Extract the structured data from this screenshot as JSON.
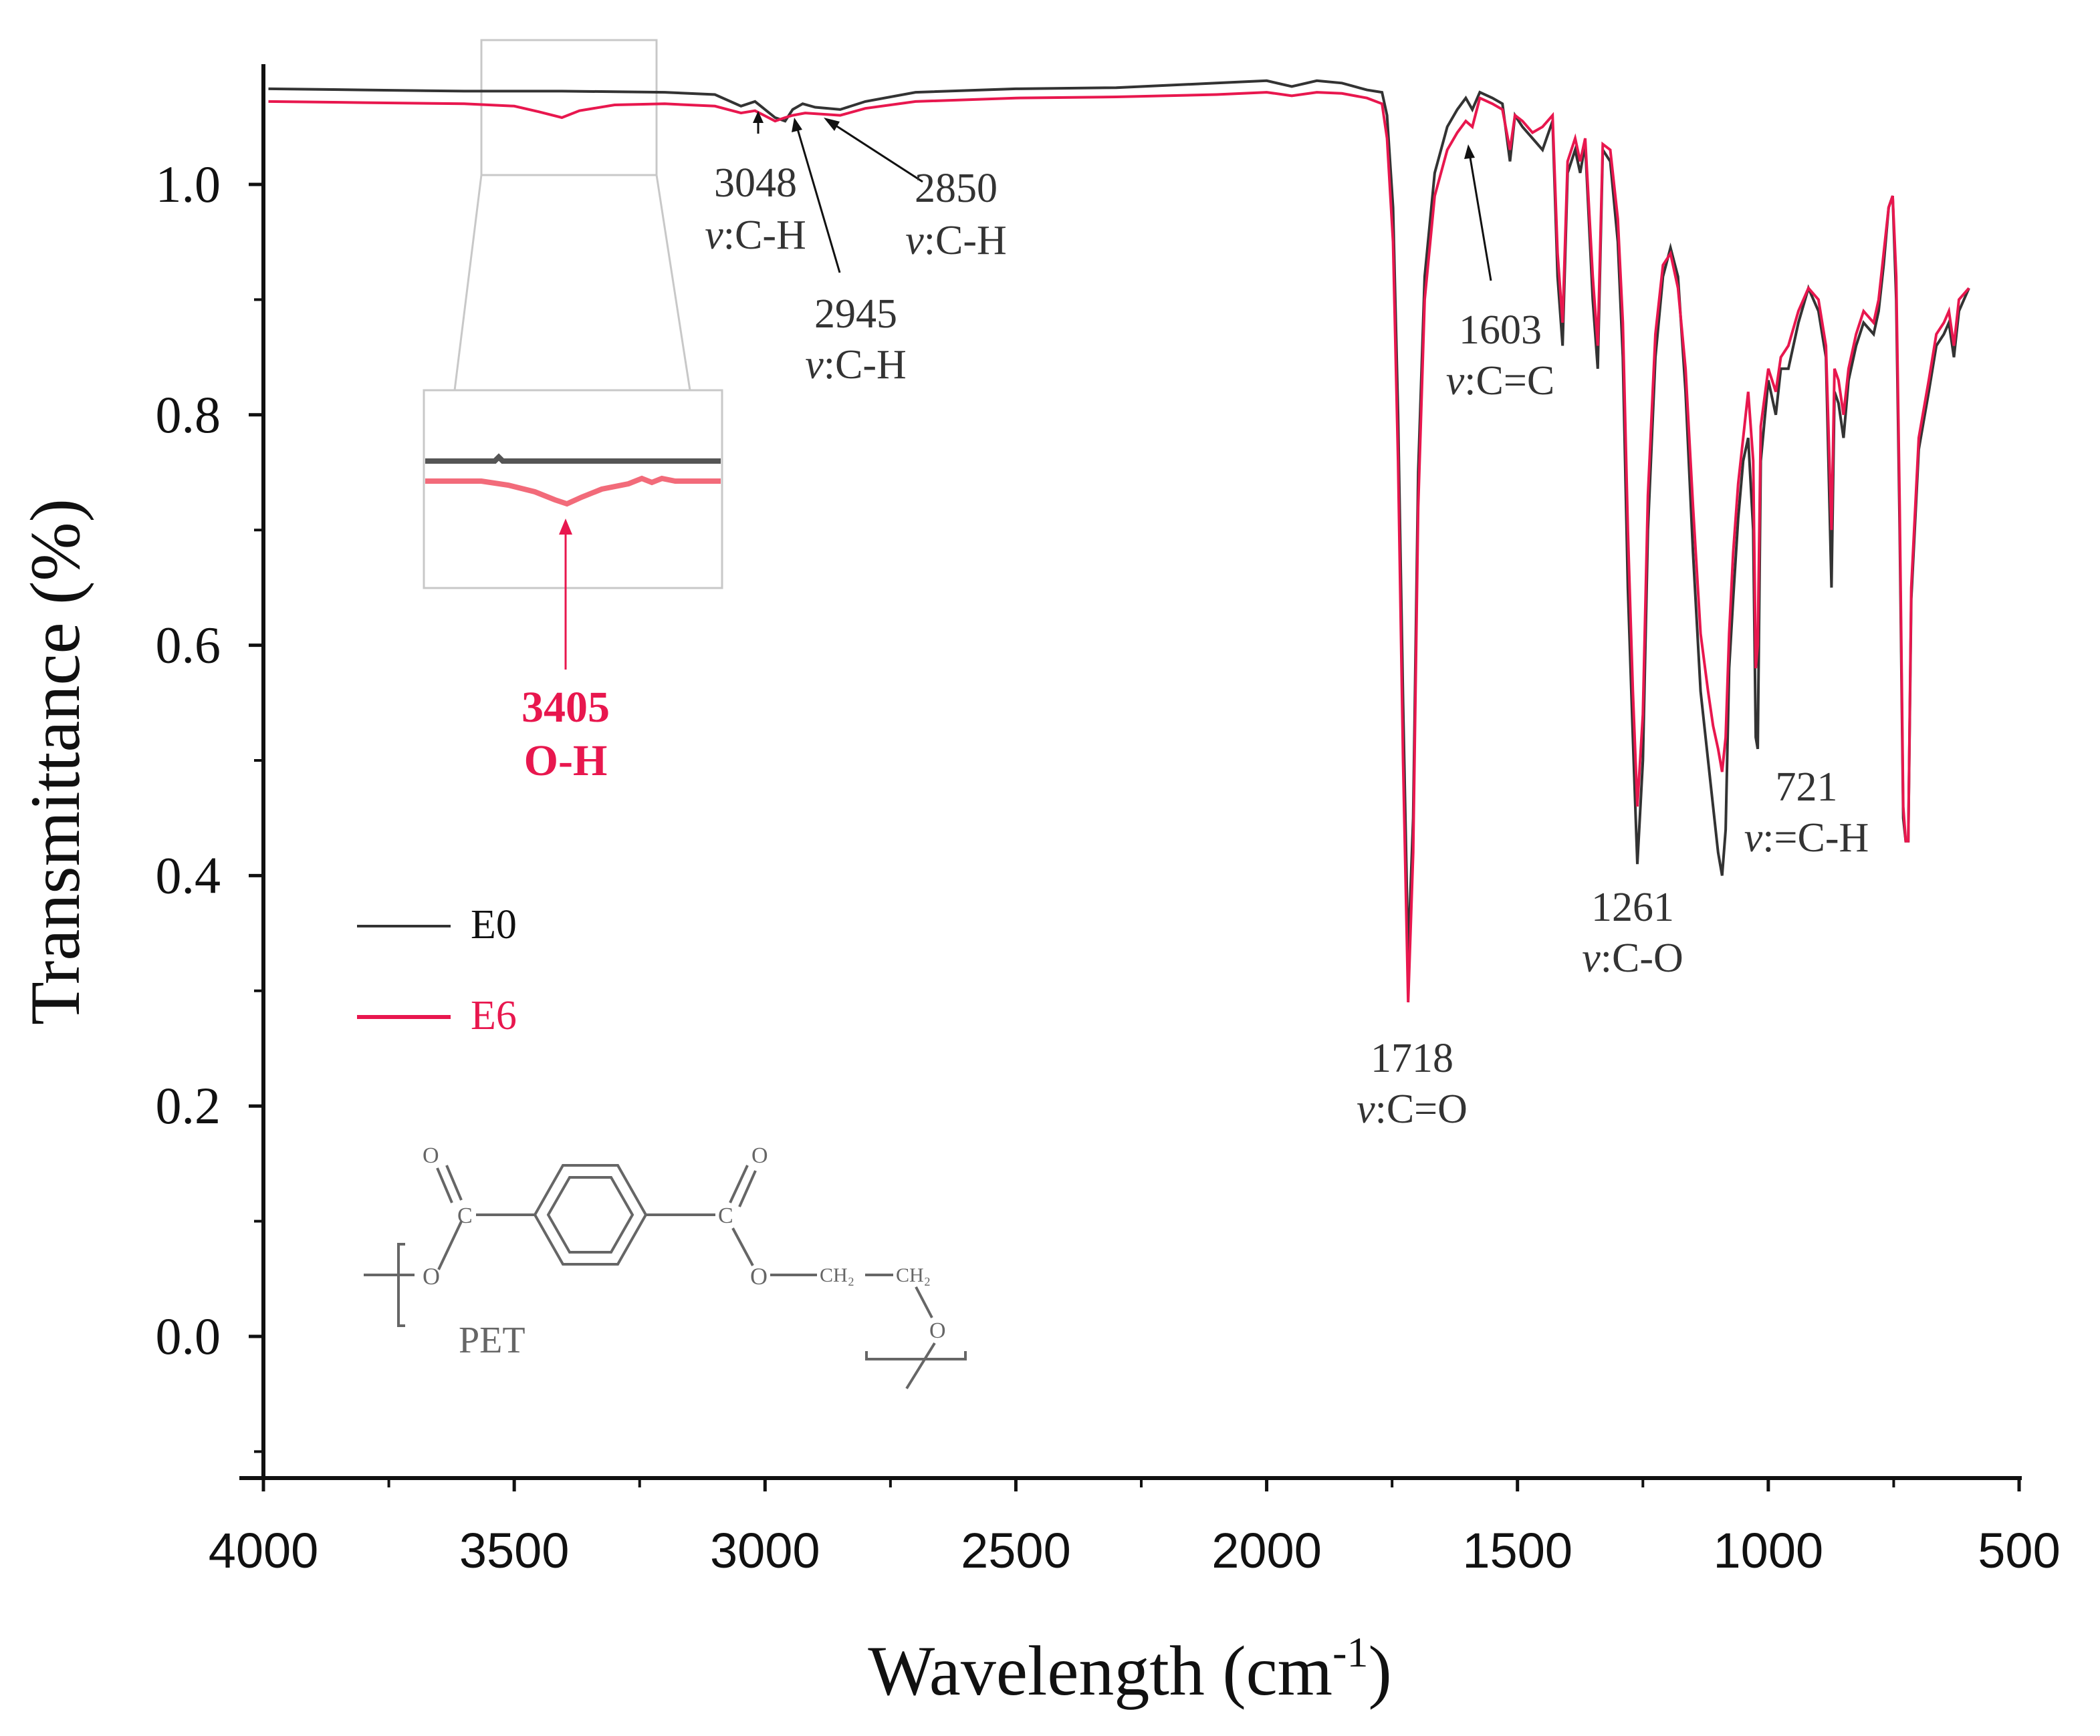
{
  "chart_data": {
    "type": "line",
    "xlabel": "Wavelength (cm",
    "xlabel_sup": "-1",
    "xlabel_close": ")",
    "ylabel": "Transmittance (%)",
    "xlim": [
      4000,
      500
    ],
    "ylim": [
      -0.12,
      1.1
    ],
    "x_ticks": [
      "4000",
      "3500",
      "3000",
      "2500",
      "2000",
      "1500",
      "1000",
      "500"
    ],
    "y_ticks": [
      "0.0",
      "0.2",
      "0.4",
      "0.6",
      "0.8",
      "1.0"
    ],
    "series": [
      {
        "name": "E0",
        "color": "#333333",
        "points": [
          [
            3990,
            1.083
          ],
          [
            3800,
            1.082
          ],
          [
            3600,
            1.081
          ],
          [
            3405,
            1.081
          ],
          [
            3200,
            1.08
          ],
          [
            3100,
            1.078
          ],
          [
            3048,
            1.068
          ],
          [
            3020,
            1.072
          ],
          [
            2980,
            1.058
          ],
          [
            2960,
            1.055
          ],
          [
            2945,
            1.065
          ],
          [
            2925,
            1.07
          ],
          [
            2900,
            1.067
          ],
          [
            2850,
            1.065
          ],
          [
            2800,
            1.072
          ],
          [
            2700,
            1.08
          ],
          [
            2500,
            1.083
          ],
          [
            2300,
            1.084
          ],
          [
            2100,
            1.088
          ],
          [
            2000,
            1.09
          ],
          [
            1950,
            1.085
          ],
          [
            1900,
            1.09
          ],
          [
            1850,
            1.088
          ],
          [
            1800,
            1.082
          ],
          [
            1770,
            1.08
          ],
          [
            1760,
            1.06
          ],
          [
            1748,
            0.98
          ],
          [
            1738,
            0.8
          ],
          [
            1728,
            0.55
          ],
          [
            1718,
            0.33
          ],
          [
            1708,
            0.45
          ],
          [
            1698,
            0.75
          ],
          [
            1685,
            0.92
          ],
          [
            1665,
            1.01
          ],
          [
            1640,
            1.05
          ],
          [
            1620,
            1.065
          ],
          [
            1603,
            1.075
          ],
          [
            1590,
            1.065
          ],
          [
            1575,
            1.08
          ],
          [
            1550,
            1.075
          ],
          [
            1530,
            1.07
          ],
          [
            1515,
            1.02
          ],
          [
            1505,
            1.06
          ],
          [
            1490,
            1.05
          ],
          [
            1470,
            1.04
          ],
          [
            1450,
            1.03
          ],
          [
            1430,
            1.055
          ],
          [
            1420,
            0.92
          ],
          [
            1410,
            0.86
          ],
          [
            1400,
            1.01
          ],
          [
            1385,
            1.03
          ],
          [
            1375,
            1.01
          ],
          [
            1365,
            1.035
          ],
          [
            1350,
            0.9
          ],
          [
            1340,
            0.84
          ],
          [
            1330,
            1.03
          ],
          [
            1315,
            1.02
          ],
          [
            1300,
            0.95
          ],
          [
            1290,
            0.85
          ],
          [
            1280,
            0.65
          ],
          [
            1270,
            0.52
          ],
          [
            1261,
            0.41
          ],
          [
            1250,
            0.5
          ],
          [
            1240,
            0.7
          ],
          [
            1225,
            0.85
          ],
          [
            1210,
            0.92
          ],
          [
            1195,
            0.945
          ],
          [
            1180,
            0.92
          ],
          [
            1165,
            0.82
          ],
          [
            1150,
            0.68
          ],
          [
            1135,
            0.56
          ],
          [
            1120,
            0.5
          ],
          [
            1110,
            0.46
          ],
          [
            1100,
            0.42
          ],
          [
            1092,
            0.4
          ],
          [
            1085,
            0.44
          ],
          [
            1078,
            0.58
          ],
          [
            1070,
            0.64
          ],
          [
            1060,
            0.71
          ],
          [
            1050,
            0.76
          ],
          [
            1040,
            0.78
          ],
          [
            1030,
            0.7
          ],
          [
            1025,
            0.52
          ],
          [
            1021,
            0.51
          ],
          [
            1015,
            0.76
          ],
          [
            1000,
            0.83
          ],
          [
            985,
            0.8
          ],
          [
            975,
            0.84
          ],
          [
            960,
            0.84
          ],
          [
            940,
            0.88
          ],
          [
            920,
            0.91
          ],
          [
            900,
            0.89
          ],
          [
            885,
            0.85
          ],
          [
            874,
            0.65
          ],
          [
            868,
            0.82
          ],
          [
            860,
            0.81
          ],
          [
            850,
            0.78
          ],
          [
            840,
            0.83
          ],
          [
            825,
            0.86
          ],
          [
            810,
            0.88
          ],
          [
            790,
            0.87
          ],
          [
            780,
            0.89
          ],
          [
            770,
            0.93
          ],
          [
            760,
            0.98
          ],
          [
            752,
            0.99
          ],
          [
            745,
            0.9
          ],
          [
            738,
            0.7
          ],
          [
            731,
            0.45
          ],
          [
            726,
            0.43
          ],
          [
            721,
            0.43
          ],
          [
            715,
            0.64
          ],
          [
            700,
            0.77
          ],
          [
            680,
            0.82
          ],
          [
            665,
            0.86
          ],
          [
            650,
            0.87
          ],
          [
            640,
            0.88
          ],
          [
            630,
            0.85
          ],
          [
            620,
            0.89
          ],
          [
            600,
            0.91
          ]
        ]
      },
      {
        "name": "E6",
        "color": "#e8174e",
        "points": [
          [
            3990,
            1.072
          ],
          [
            3800,
            1.071
          ],
          [
            3600,
            1.07
          ],
          [
            3500,
            1.068
          ],
          [
            3450,
            1.063
          ],
          [
            3405,
            1.058
          ],
          [
            3370,
            1.064
          ],
          [
            3300,
            1.069
          ],
          [
            3200,
            1.07
          ],
          [
            3100,
            1.068
          ],
          [
            3048,
            1.062
          ],
          [
            3020,
            1.064
          ],
          [
            2980,
            1.055
          ],
          [
            2960,
            1.058
          ],
          [
            2945,
            1.06
          ],
          [
            2920,
            1.062
          ],
          [
            2850,
            1.06
          ],
          [
            2800,
            1.066
          ],
          [
            2700,
            1.072
          ],
          [
            2500,
            1.075
          ],
          [
            2300,
            1.076
          ],
          [
            2100,
            1.078
          ],
          [
            2000,
            1.08
          ],
          [
            1950,
            1.077
          ],
          [
            1900,
            1.08
          ],
          [
            1850,
            1.079
          ],
          [
            1800,
            1.075
          ],
          [
            1770,
            1.07
          ],
          [
            1760,
            1.04
          ],
          [
            1748,
            0.95
          ],
          [
            1738,
            0.76
          ],
          [
            1728,
            0.5
          ],
          [
            1718,
            0.29
          ],
          [
            1708,
            0.42
          ],
          [
            1698,
            0.72
          ],
          [
            1685,
            0.9
          ],
          [
            1665,
            0.99
          ],
          [
            1640,
            1.03
          ],
          [
            1620,
            1.045
          ],
          [
            1603,
            1.055
          ],
          [
            1590,
            1.05
          ],
          [
            1575,
            1.075
          ],
          [
            1550,
            1.07
          ],
          [
            1530,
            1.065
          ],
          [
            1515,
            1.03
          ],
          [
            1505,
            1.06
          ],
          [
            1490,
            1.055
          ],
          [
            1470,
            1.045
          ],
          [
            1450,
            1.05
          ],
          [
            1430,
            1.06
          ],
          [
            1420,
            0.94
          ],
          [
            1410,
            0.88
          ],
          [
            1400,
            1.02
          ],
          [
            1385,
            1.04
          ],
          [
            1375,
            1.02
          ],
          [
            1365,
            1.04
          ],
          [
            1350,
            0.92
          ],
          [
            1340,
            0.86
          ],
          [
            1330,
            1.035
          ],
          [
            1315,
            1.03
          ],
          [
            1300,
            0.97
          ],
          [
            1290,
            0.88
          ],
          [
            1280,
            0.7
          ],
          [
            1270,
            0.56
          ],
          [
            1261,
            0.46
          ],
          [
            1250,
            0.54
          ],
          [
            1240,
            0.73
          ],
          [
            1225,
            0.87
          ],
          [
            1210,
            0.93
          ],
          [
            1195,
            0.94
          ],
          [
            1180,
            0.91
          ],
          [
            1165,
            0.84
          ],
          [
            1150,
            0.72
          ],
          [
            1135,
            0.61
          ],
          [
            1120,
            0.56
          ],
          [
            1110,
            0.53
          ],
          [
            1100,
            0.51
          ],
          [
            1092,
            0.49
          ],
          [
            1085,
            0.52
          ],
          [
            1078,
            0.61
          ],
          [
            1070,
            0.68
          ],
          [
            1060,
            0.74
          ],
          [
            1050,
            0.78
          ],
          [
            1040,
            0.82
          ],
          [
            1030,
            0.76
          ],
          [
            1025,
            0.58
          ],
          [
            1021,
            0.6
          ],
          [
            1015,
            0.79
          ],
          [
            1000,
            0.84
          ],
          [
            985,
            0.82
          ],
          [
            975,
            0.85
          ],
          [
            960,
            0.86
          ],
          [
            940,
            0.89
          ],
          [
            920,
            0.91
          ],
          [
            900,
            0.9
          ],
          [
            885,
            0.86
          ],
          [
            874,
            0.7
          ],
          [
            868,
            0.84
          ],
          [
            860,
            0.83
          ],
          [
            850,
            0.8
          ],
          [
            840,
            0.84
          ],
          [
            825,
            0.87
          ],
          [
            810,
            0.89
          ],
          [
            790,
            0.88
          ],
          [
            780,
            0.9
          ],
          [
            770,
            0.94
          ],
          [
            760,
            0.98
          ],
          [
            752,
            0.99
          ],
          [
            745,
            0.92
          ],
          [
            738,
            0.72
          ],
          [
            731,
            0.46
          ],
          [
            726,
            0.43
          ],
          [
            721,
            0.43
          ],
          [
            715,
            0.65
          ],
          [
            700,
            0.78
          ],
          [
            680,
            0.83
          ],
          [
            665,
            0.87
          ],
          [
            650,
            0.88
          ],
          [
            640,
            0.89
          ],
          [
            630,
            0.86
          ],
          [
            620,
            0.9
          ],
          [
            600,
            0.91
          ]
        ]
      }
    ],
    "annotations": [
      {
        "wavenumber": "3048",
        "label": "C-H"
      },
      {
        "wavenumber": "2945",
        "label": "C-H"
      },
      {
        "wavenumber": "2850",
        "label": "C-H"
      },
      {
        "wavenumber": "1603",
        "label": "C=C"
      },
      {
        "wavenumber": "1718",
        "label": "C=O"
      },
      {
        "wavenumber": "1261",
        "label": "C-O"
      },
      {
        "wavenumber": "721",
        "label": "=C-H"
      }
    ],
    "mode_prefix": "v",
    "highlight": {
      "wavenumber": "3405",
      "label": "O-H"
    },
    "legend": [
      "E0",
      "E6"
    ],
    "inset": {
      "text": "PET"
    }
  }
}
